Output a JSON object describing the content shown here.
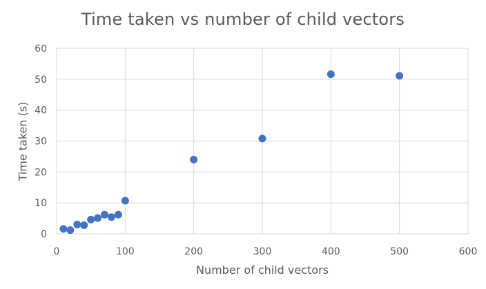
{
  "chart_data": {
    "type": "scatter",
    "title": "Time taken vs number of child vectors",
    "xlabel": "Number of child vectors",
    "ylabel": "Time taken (s)",
    "xlim": [
      0,
      600
    ],
    "ylim": [
      0,
      60
    ],
    "xticks": [
      0,
      100,
      200,
      300,
      400,
      500,
      600
    ],
    "yticks": [
      0,
      10,
      20,
      30,
      40,
      50,
      60
    ],
    "grid": true,
    "legend": "none",
    "marker_color": "#4472C4",
    "series": [
      {
        "x": [
          10,
          20,
          30,
          40,
          50,
          60,
          70,
          80,
          90,
          100,
          200,
          300,
          400,
          500
        ],
        "y": [
          1.6,
          1.2,
          3.0,
          2.8,
          4.6,
          5.1,
          6.2,
          5.4,
          6.2,
          10.7,
          24.0,
          30.8,
          51.6,
          51.1
        ]
      }
    ]
  }
}
